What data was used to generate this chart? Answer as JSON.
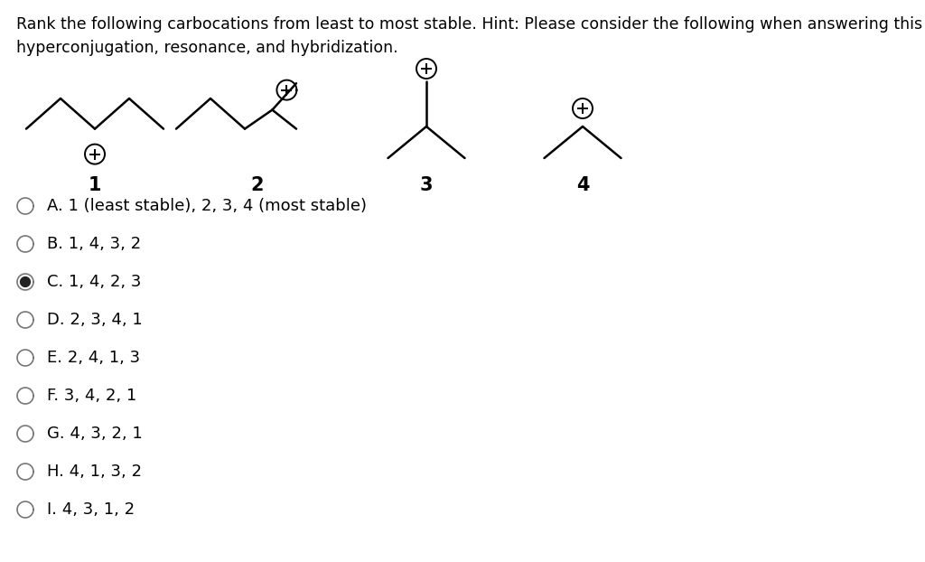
{
  "title_text": "Rank the following carbocations from least to most stable. Hint: Please consider the following when answering this problem:\nhyperconjugation, resonance, and hybridization.",
  "bg_color": "#ffffff",
  "text_color": "#000000",
  "font_family": "DejaVu Sans",
  "options": [
    {
      "label": "A. 1 (least stable), 2, 3, 4 (most stable)",
      "selected": false
    },
    {
      "label": "B. 1, 4, 3, 2",
      "selected": false
    },
    {
      "label": "C. 1, 4, 2, 3",
      "selected": true
    },
    {
      "label": "D. 2, 3, 4, 1",
      "selected": false
    },
    {
      "label": "E. 2, 4, 1, 3",
      "selected": false
    },
    {
      "label": "F. 3, 4, 2, 1",
      "selected": false
    },
    {
      "label": "G. 4, 3, 2, 1",
      "selected": false
    },
    {
      "label": "H. 4, 1, 3, 2",
      "selected": false
    },
    {
      "label": "I. 4, 3, 1, 2",
      "selected": false
    }
  ],
  "title_fontsize": 12.5,
  "option_fontsize": 13,
  "label_fontsize": 15
}
